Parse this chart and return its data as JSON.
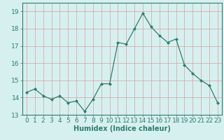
{
  "x": [
    0,
    1,
    2,
    3,
    4,
    5,
    6,
    7,
    8,
    9,
    10,
    11,
    12,
    13,
    14,
    15,
    16,
    17,
    18,
    19,
    20,
    21,
    22,
    23
  ],
  "y": [
    14.3,
    14.5,
    14.1,
    13.9,
    14.1,
    13.7,
    13.8,
    13.2,
    13.9,
    14.8,
    14.8,
    17.2,
    17.1,
    18.0,
    18.9,
    18.1,
    17.6,
    17.2,
    17.4,
    15.9,
    15.4,
    15.0,
    14.7,
    13.7
  ],
  "line_color": "#2e7d6e",
  "marker": "D",
  "marker_size": 2,
  "bg_color": "#d6f0ef",
  "grid_color": "#c8e8e6",
  "xlabel": "Humidex (Indice chaleur)",
  "xlim": [
    -0.5,
    23.5
  ],
  "ylim": [
    13.0,
    19.5
  ],
  "yticks": [
    13,
    14,
    15,
    16,
    17,
    18,
    19
  ],
  "xticks": [
    0,
    1,
    2,
    3,
    4,
    5,
    6,
    7,
    8,
    9,
    10,
    11,
    12,
    13,
    14,
    15,
    16,
    17,
    18,
    19,
    20,
    21,
    22,
    23
  ],
  "xlabel_fontsize": 7,
  "tick_fontsize": 6.5
}
